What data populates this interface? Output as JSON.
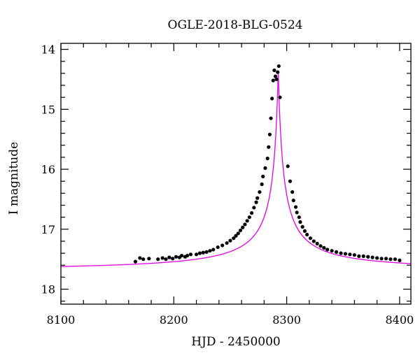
{
  "chart_data": {
    "type": "scatter",
    "title": "OGLE-2018-BLG-0524",
    "xlabel": "HJD - 2450000",
    "ylabel": "I magnitude",
    "xlim": [
      8100,
      8410
    ],
    "ylim": [
      18.25,
      13.9
    ],
    "y_inverted": true,
    "grid": false,
    "x_ticks": [
      8100,
      8200,
      8300,
      8400
    ],
    "y_ticks": [
      14,
      15,
      16,
      17,
      18
    ],
    "x_tick_labels": [
      "8100",
      "8200",
      "8300",
      "8400"
    ],
    "y_tick_labels": [
      "14",
      "15",
      "16",
      "17",
      "18"
    ],
    "colors": {
      "points": "#000000",
      "model": "#e600e6",
      "axes": "#000000"
    },
    "model": {
      "t0": 8292.5,
      "half_width": 4.6,
      "peak_mag": 14.35,
      "amp": 3.35,
      "baseline": 17.58,
      "range": [
        8100,
        8410
      ]
    },
    "series": [
      {
        "x": [
          8166,
          8170,
          8173,
          8178,
          8186,
          8190,
          8193,
          8196,
          8199,
          8202,
          8205,
          8207,
          8210,
          8212,
          8215,
          8220,
          8223,
          8226,
          8229,
          8232,
          8235,
          8239,
          8243,
          8247,
          8250,
          8253,
          8255,
          8257,
          8259,
          8261,
          8263,
          8265,
          8267,
          8269,
          8271,
          8273,
          8274,
          8276,
          8278,
          8279,
          8281,
          8283,
          8284,
          8285,
          8286,
          8287,
          8288,
          8289,
          8290,
          8291,
          8292,
          8293,
          8294,
          8301,
          8303,
          8305,
          8306,
          8308,
          8309,
          8311,
          8312,
          8314,
          8316,
          8318,
          8321,
          8324,
          8327,
          8330,
          8333,
          8336,
          8340,
          8344,
          8348,
          8352,
          8356,
          8360,
          8364,
          8368,
          8372,
          8376,
          8380,
          8384,
          8388,
          8392,
          8396,
          8400
        ],
        "y": [
          17.54,
          17.48,
          17.5,
          17.49,
          17.5,
          17.48,
          17.5,
          17.47,
          17.49,
          17.46,
          17.47,
          17.44,
          17.46,
          17.44,
          17.42,
          17.42,
          17.4,
          17.39,
          17.38,
          17.36,
          17.34,
          17.3,
          17.27,
          17.23,
          17.19,
          17.15,
          17.11,
          17.07,
          17.02,
          16.97,
          16.92,
          16.86,
          16.8,
          16.73,
          16.64,
          16.55,
          16.48,
          16.38,
          16.25,
          16.12,
          15.98,
          15.82,
          15.63,
          15.42,
          15.15,
          14.82,
          14.52,
          14.35,
          14.45,
          14.5,
          14.38,
          14.28,
          14.8,
          15.95,
          16.2,
          16.38,
          16.52,
          16.63,
          16.72,
          16.8,
          16.88,
          16.96,
          17.03,
          17.09,
          17.15,
          17.2,
          17.24,
          17.28,
          17.31,
          17.34,
          17.36,
          17.38,
          17.4,
          17.41,
          17.42,
          17.43,
          17.45,
          17.45,
          17.46,
          17.47,
          17.48,
          17.49,
          17.49,
          17.5,
          17.5,
          17.52
        ]
      }
    ]
  }
}
